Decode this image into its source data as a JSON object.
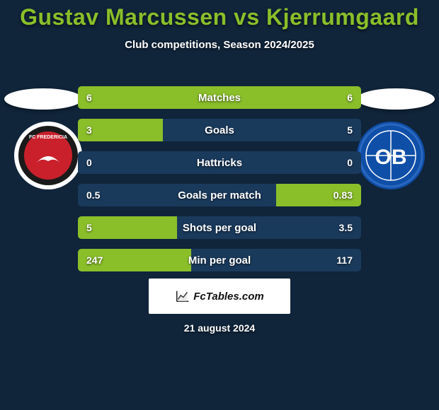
{
  "background_color": "#10243a",
  "title": {
    "text": "Gustav Marcussen vs Kjerrumgaard",
    "color": "#8abf2a",
    "fontsize": 32
  },
  "subtitle": "Club competitions, Season 2024/2025",
  "left_club": {
    "name": "FC Fredericia",
    "badge_bg": "#ffffff",
    "badge_ring": "#1a1a1a",
    "badge_inner": "#c9202c"
  },
  "right_club": {
    "name": "OB",
    "badge_bg": "#0f4fa8",
    "badge_ring": "#2b68c0",
    "badge_text": "OB",
    "badge_text_color": "#ffffff"
  },
  "bar_track_color": "#1a3a5c",
  "bar_fill_color": "#8abf2a",
  "stats": [
    {
      "label": "Matches",
      "left_val": "6",
      "right_val": "6",
      "left_pct": 50,
      "right_pct": 50
    },
    {
      "label": "Goals",
      "left_val": "3",
      "right_val": "5",
      "left_pct": 30,
      "right_pct": 0
    },
    {
      "label": "Hattricks",
      "left_val": "0",
      "right_val": "0",
      "left_pct": 0,
      "right_pct": 0
    },
    {
      "label": "Goals per match",
      "left_val": "0.5",
      "right_val": "0.83",
      "left_pct": 0,
      "right_pct": 30
    },
    {
      "label": "Shots per goal",
      "left_val": "5",
      "right_val": "3.5",
      "left_pct": 35,
      "right_pct": 0
    },
    {
      "label": "Min per goal",
      "left_val": "247",
      "right_val": "117",
      "left_pct": 40,
      "right_pct": 0
    }
  ],
  "credit": "FcTables.com",
  "date": "21 august 2024"
}
